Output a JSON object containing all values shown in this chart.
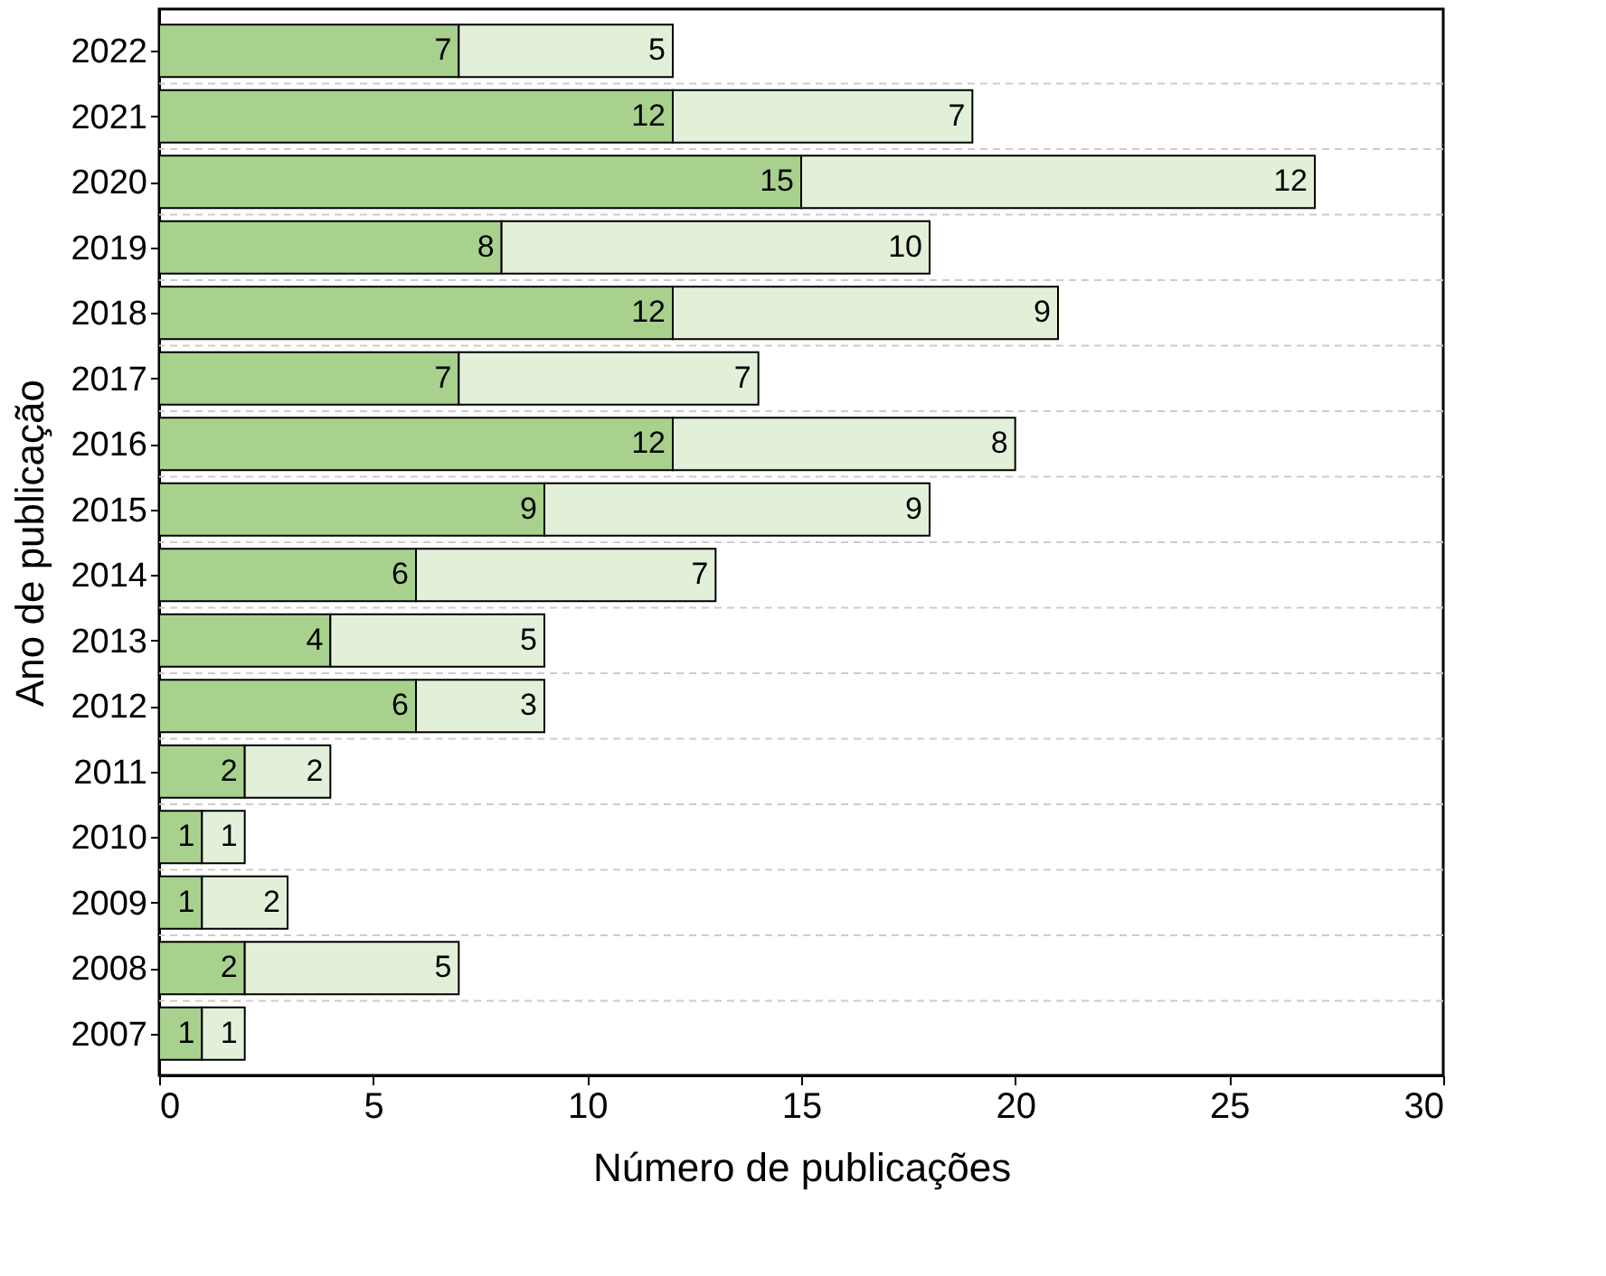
{
  "chart_data": {
    "type": "bar",
    "orientation": "horizontal",
    "stacked": true,
    "xlabel": "Número de publicações",
    "ylabel": "Ano de publicação",
    "categories": [
      "2022",
      "2021",
      "2020",
      "2019",
      "2018",
      "2017",
      "2016",
      "2015",
      "2014",
      "2013",
      "2012",
      "2011",
      "2010",
      "2009",
      "2008",
      "2007"
    ],
    "series": [
      {
        "color": "#a9d18e",
        "values": [
          7,
          12,
          15,
          8,
          12,
          7,
          12,
          9,
          6,
          4,
          6,
          2,
          1,
          1,
          2,
          1
        ]
      },
      {
        "color": "#e2f0d9",
        "values": [
          5,
          7,
          12,
          10,
          9,
          7,
          8,
          9,
          7,
          5,
          3,
          2,
          1,
          2,
          5,
          1
        ]
      }
    ],
    "xlim": [
      0,
      30
    ],
    "xticks": [
      0,
      5,
      10,
      15,
      20,
      25,
      30
    ],
    "grid": "y",
    "data_labels": true,
    "legend": false
  }
}
